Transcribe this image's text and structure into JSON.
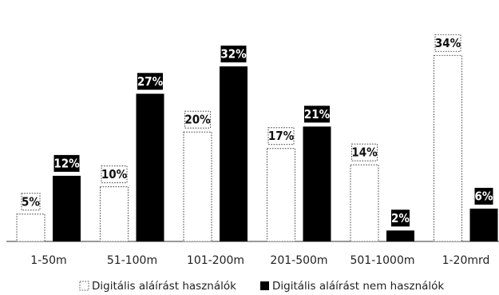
{
  "chart_data": {
    "type": "bar",
    "categories": [
      "1-50m",
      "51-100m",
      "101-200m",
      "201-500m",
      "501-1000m",
      "1-20mrd"
    ],
    "series": [
      {
        "name": "Digitális aláírást használók",
        "values": [
          5,
          10,
          20,
          17,
          14,
          34
        ],
        "labels": [
          "5%",
          "10%",
          "20%",
          "17%",
          "14%",
          "34%"
        ],
        "style": "dotted-outline"
      },
      {
        "name": "Digitális aláírást nem használók",
        "values": [
          12,
          27,
          32,
          21,
          2,
          6
        ],
        "labels": [
          "12%",
          "27%",
          "32%",
          "21%",
          "2%",
          "6%"
        ],
        "style": "solid-black"
      }
    ],
    "unit": "%",
    "ylim": [
      0,
      38
    ],
    "grid": false,
    "legend_position": "bottom",
    "colors": {
      "users": "#ffffff",
      "non_users": "#000000",
      "outline": "#555555"
    }
  }
}
